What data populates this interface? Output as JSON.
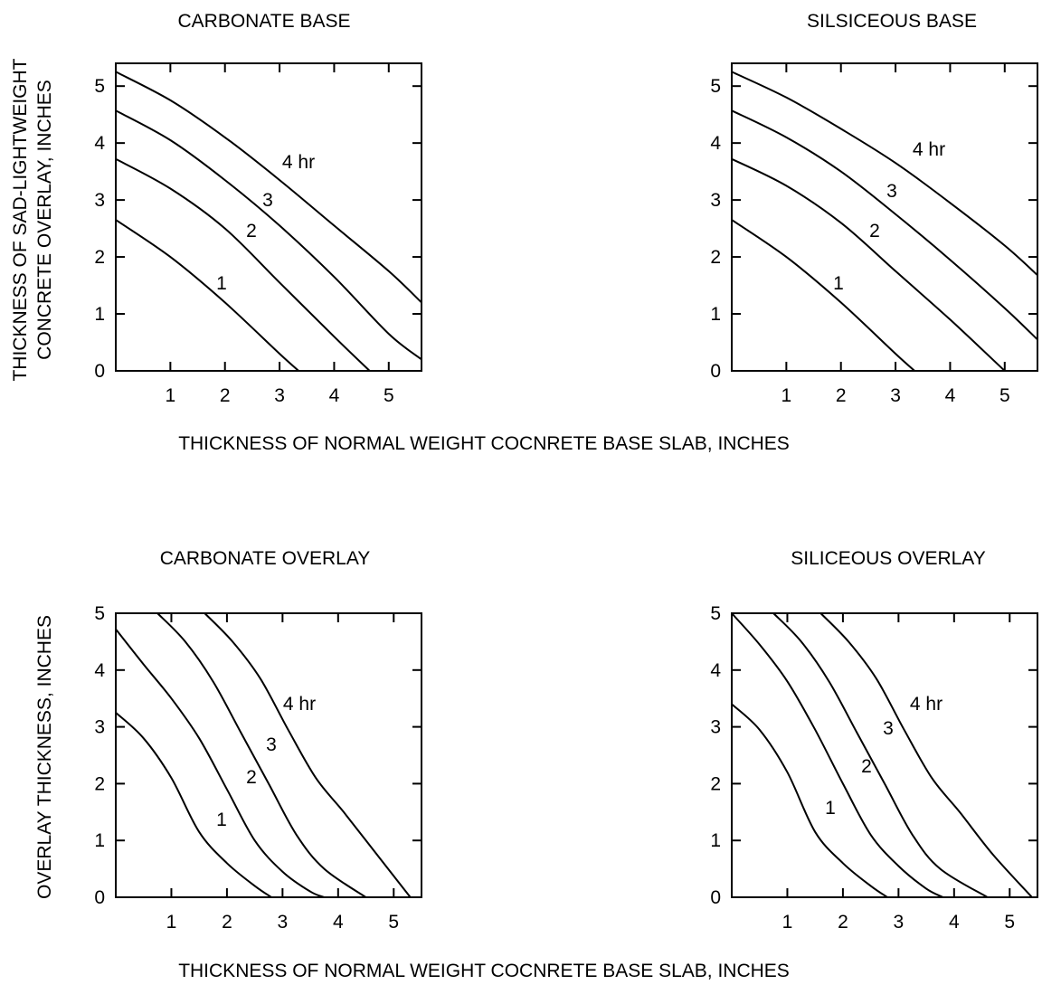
{
  "figure": {
    "top_xlabel": "THICKNESS OF NORMAL WEIGHT COCNRETE BASE SLAB, INCHES",
    "top_ylabel_line1": "THICKNESS OF SAD-LIGHTWEIGHT",
    "top_ylabel_line2": "CONCRETE OVERLAY, INCHES",
    "bottom_xlabel": "THICKNESS OF NORMAL WEIGHT COCNRETE BASE SLAB, INCHES",
    "bottom_ylabel": "OVERLAY THICKNESS, INCHES"
  },
  "chart_data": [
    {
      "type": "line",
      "title": "CARBONATE BASE",
      "xlim": [
        0,
        5.6
      ],
      "ylim": [
        0,
        5.4
      ],
      "xticks": [
        1,
        2,
        3,
        4,
        5
      ],
      "yticks": [
        0,
        1,
        2,
        3,
        4,
        5
      ],
      "series": [
        {
          "name": "1",
          "points": [
            [
              0,
              2.65
            ],
            [
              1,
              2.0
            ],
            [
              2,
              1.2
            ],
            [
              3,
              0.3
            ],
            [
              3.35,
              0
            ]
          ]
        },
        {
          "name": "2",
          "points": [
            [
              0,
              3.72
            ],
            [
              1,
              3.2
            ],
            [
              2,
              2.5
            ],
            [
              3,
              1.55
            ],
            [
              4,
              0.6
            ],
            [
              4.65,
              0
            ]
          ]
        },
        {
          "name": "3",
          "points": [
            [
              0,
              4.57
            ],
            [
              1,
              4.05
            ],
            [
              2,
              3.35
            ],
            [
              3,
              2.55
            ],
            [
              4,
              1.65
            ],
            [
              5,
              0.65
            ],
            [
              5.6,
              0.2
            ]
          ]
        },
        {
          "name": "4 hr",
          "points": [
            [
              0,
              5.25
            ],
            [
              1,
              4.75
            ],
            [
              2,
              4.1
            ],
            [
              3,
              3.35
            ],
            [
              4,
              2.55
            ],
            [
              5,
              1.75
            ],
            [
              5.6,
              1.2
            ]
          ]
        }
      ]
    },
    {
      "type": "line",
      "title": "SILSICEOUS BASE",
      "xlim": [
        0,
        5.6
      ],
      "ylim": [
        0,
        5.4
      ],
      "xticks": [
        1,
        2,
        3,
        4,
        5
      ],
      "yticks": [
        0,
        1,
        2,
        3,
        4,
        5
      ],
      "series": [
        {
          "name": "1",
          "points": [
            [
              0,
              2.65
            ],
            [
              1,
              2.0
            ],
            [
              2,
              1.2
            ],
            [
              3,
              0.3
            ],
            [
              3.35,
              0
            ]
          ]
        },
        {
          "name": "2",
          "points": [
            [
              0,
              3.72
            ],
            [
              1,
              3.25
            ],
            [
              2,
              2.6
            ],
            [
              3,
              1.75
            ],
            [
              4,
              0.9
            ],
            [
              5,
              0
            ]
          ]
        },
        {
          "name": "3",
          "points": [
            [
              0,
              4.57
            ],
            [
              1,
              4.1
            ],
            [
              2,
              3.5
            ],
            [
              3,
              2.75
            ],
            [
              4,
              1.95
            ],
            [
              5,
              1.1
            ],
            [
              5.6,
              0.55
            ]
          ]
        },
        {
          "name": "4 hr",
          "points": [
            [
              0,
              5.25
            ],
            [
              1,
              4.8
            ],
            [
              2,
              4.25
            ],
            [
              3,
              3.65
            ],
            [
              4,
              2.95
            ],
            [
              5,
              2.2
            ],
            [
              5.6,
              1.68
            ]
          ]
        }
      ]
    },
    {
      "type": "line",
      "title": "CARBONATE OVERLAY",
      "xlim": [
        0,
        5.5
      ],
      "ylim": [
        0,
        5
      ],
      "xticks": [
        1,
        2,
        3,
        4,
        5
      ],
      "yticks": [
        0,
        1,
        2,
        3,
        4,
        5
      ],
      "series": [
        {
          "name": "1",
          "points": [
            [
              0,
              3.25
            ],
            [
              0.5,
              2.8
            ],
            [
              1,
              2.1
            ],
            [
              1.5,
              1.15
            ],
            [
              2,
              0.6
            ],
            [
              2.5,
              0.2
            ],
            [
              2.8,
              0
            ]
          ]
        },
        {
          "name": "2",
          "points": [
            [
              0,
              4.72
            ],
            [
              0.5,
              4.1
            ],
            [
              1,
              3.5
            ],
            [
              1.5,
              2.8
            ],
            [
              2,
              1.9
            ],
            [
              2.5,
              1.0
            ],
            [
              3,
              0.45
            ],
            [
              3.5,
              0.1
            ],
            [
              3.75,
              0
            ]
          ]
        },
        {
          "name": "3",
          "points": [
            [
              0.75,
              5
            ],
            [
              1.25,
              4.5
            ],
            [
              1.75,
              3.8
            ],
            [
              2.25,
              2.9
            ],
            [
              2.75,
              2.0
            ],
            [
              3.25,
              1.1
            ],
            [
              3.75,
              0.5
            ],
            [
              4.5,
              0
            ]
          ]
        },
        {
          "name": "4 hr",
          "points": [
            [
              1.6,
              5
            ],
            [
              2.1,
              4.5
            ],
            [
              2.6,
              3.85
            ],
            [
              3.1,
              2.95
            ],
            [
              3.6,
              2.1
            ],
            [
              4.1,
              1.5
            ],
            [
              4.7,
              0.75
            ],
            [
              5.3,
              0
            ]
          ]
        }
      ]
    },
    {
      "type": "line",
      "title": "SILICEOUS OVERLAY",
      "xlim": [
        0,
        5.5
      ],
      "ylim": [
        0,
        5
      ],
      "xticks": [
        1,
        2,
        3,
        4,
        5
      ],
      "yticks": [
        0,
        1,
        2,
        3,
        4,
        5
      ],
      "series": [
        {
          "name": "1",
          "points": [
            [
              0,
              3.4
            ],
            [
              0.5,
              2.95
            ],
            [
              1,
              2.2
            ],
            [
              1.5,
              1.15
            ],
            [
              2,
              0.6
            ],
            [
              2.5,
              0.2
            ],
            [
              2.8,
              0
            ]
          ]
        },
        {
          "name": "2",
          "points": [
            [
              0,
              5.0
            ],
            [
              0.5,
              4.45
            ],
            [
              1,
              3.8
            ],
            [
              1.5,
              2.95
            ],
            [
              2,
              2.0
            ],
            [
              2.5,
              1.1
            ],
            [
              3,
              0.55
            ],
            [
              3.5,
              0.15
            ],
            [
              3.8,
              0
            ]
          ]
        },
        {
          "name": "3",
          "points": [
            [
              0.75,
              5
            ],
            [
              1.25,
              4.5
            ],
            [
              1.75,
              3.8
            ],
            [
              2.25,
              2.9
            ],
            [
              2.75,
              2.0
            ],
            [
              3.25,
              1.1
            ],
            [
              3.75,
              0.5
            ],
            [
              4.6,
              0
            ]
          ]
        },
        {
          "name": "4 hr",
          "points": [
            [
              1.6,
              5
            ],
            [
              2.1,
              4.5
            ],
            [
              2.6,
              3.85
            ],
            [
              3.1,
              2.95
            ],
            [
              3.6,
              2.1
            ],
            [
              4.1,
              1.5
            ],
            [
              4.7,
              0.75
            ],
            [
              5.4,
              0
            ]
          ]
        }
      ]
    }
  ]
}
